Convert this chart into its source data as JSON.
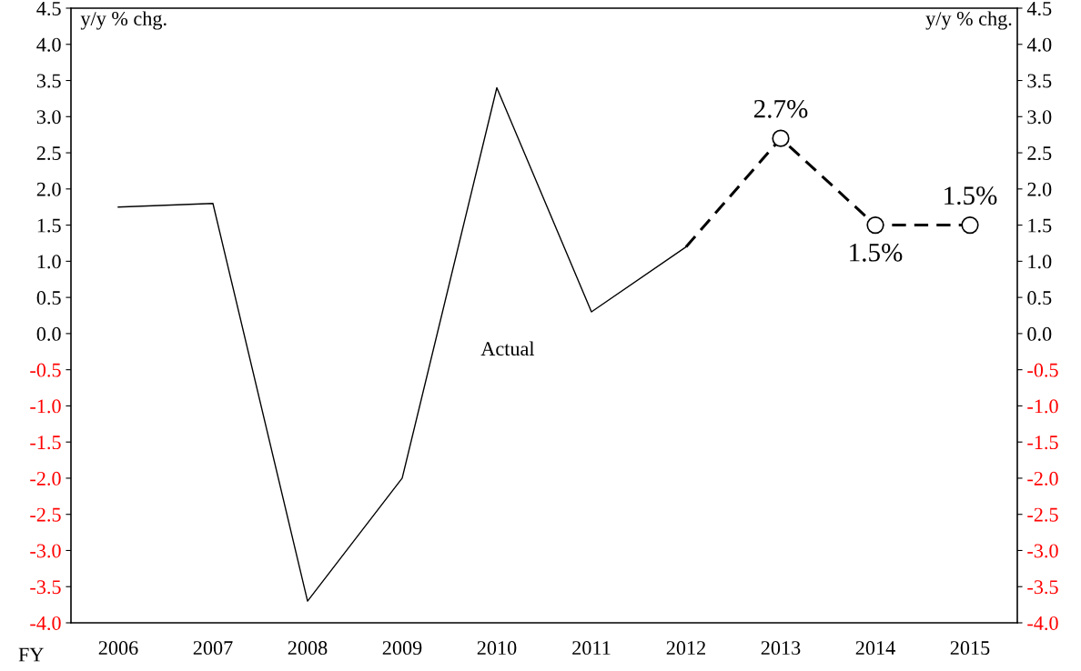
{
  "chart_data": {
    "type": "line",
    "xlabel": "FY",
    "ylabel": "y/y % chg.",
    "y2label": "y/y % chg.",
    "categories": [
      "2006",
      "2007",
      "2008",
      "2009",
      "2010",
      "2011",
      "2012",
      "2013",
      "2014",
      "2015"
    ],
    "series": [
      {
        "color": "#000000",
        "line_style": "solid",
        "marker": "none",
        "values": [
          1.75,
          1.8,
          -3.7,
          -2.0,
          3.4,
          0.3,
          1.2,
          null,
          null,
          null
        ]
      },
      {
        "color": "#000000",
        "line_style": "dashed",
        "marker": "none",
        "values": [
          null,
          null,
          null,
          null,
          null,
          null,
          1.2,
          2.7,
          1.5,
          1.5
        ]
      },
      {
        "type": "scatter",
        "color": "#000000",
        "marker": "circle",
        "values": [
          null,
          null,
          null,
          null,
          null,
          null,
          null,
          2.7,
          1.5,
          1.5
        ],
        "value_labels": [
          null,
          null,
          null,
          null,
          null,
          null,
          null,
          "2.7%",
          "1.5%",
          "1.5%"
        ]
      }
    ],
    "ylim": [
      -4.0,
      4.5
    ],
    "yticks": [
      {
        "value": -4.0,
        "label": "-4.0"
      },
      {
        "value": -3.5,
        "label": "-3.5"
      },
      {
        "value": -3.0,
        "label": "-3.0"
      },
      {
        "value": -2.5,
        "label": "-2.5"
      },
      {
        "value": -2.0,
        "label": "-2.0"
      },
      {
        "value": -1.5,
        "label": "-1.5"
      },
      {
        "value": -1.0,
        "label": "-1.0"
      },
      {
        "value": -0.5,
        "label": "-0.5"
      },
      {
        "value": 0.0,
        "label": "0.0"
      },
      {
        "value": 0.5,
        "label": "0.5"
      },
      {
        "value": 1.0,
        "label": "1.0"
      },
      {
        "value": 1.5,
        "label": "1.5"
      },
      {
        "value": 2.0,
        "label": "2.0"
      },
      {
        "value": 2.5,
        "label": "2.5"
      },
      {
        "value": 3.0,
        "label": "3.0"
      },
      {
        "value": 3.5,
        "label": "3.5"
      },
      {
        "value": 4.0,
        "label": "4.0"
      },
      {
        "value": 4.5,
        "label": "4.5"
      }
    ],
    "y2lim": [
      -4.0,
      4.5
    ],
    "y2ticks": [
      {
        "value": -4.0,
        "label": "-4.0"
      },
      {
        "value": -3.5,
        "label": "-3.5"
      },
      {
        "value": -3.0,
        "label": "-3.0"
      },
      {
        "value": -2.5,
        "label": "-2.5"
      },
      {
        "value": -2.0,
        "label": "-2.0"
      },
      {
        "value": -1.5,
        "label": "-1.5"
      },
      {
        "value": -1.0,
        "label": "-1.0"
      },
      {
        "value": -0.5,
        "label": "-0.5"
      },
      {
        "value": 0.0,
        "label": "0.0"
      },
      {
        "value": 0.5,
        "label": "0.5"
      },
      {
        "value": 1.0,
        "label": "1.0"
      },
      {
        "value": 1.5,
        "label": "1.5"
      },
      {
        "value": 2.0,
        "label": "2.0"
      },
      {
        "value": 2.5,
        "label": "2.5"
      },
      {
        "value": 3.0,
        "label": "3.0"
      },
      {
        "value": 3.5,
        "label": "3.5"
      },
      {
        "value": 4.0,
        "label": "4.0"
      },
      {
        "value": 4.5,
        "label": "4.5"
      }
    ],
    "annotations": [
      "Actual"
    ],
    "grid": false,
    "legend": false
  }
}
